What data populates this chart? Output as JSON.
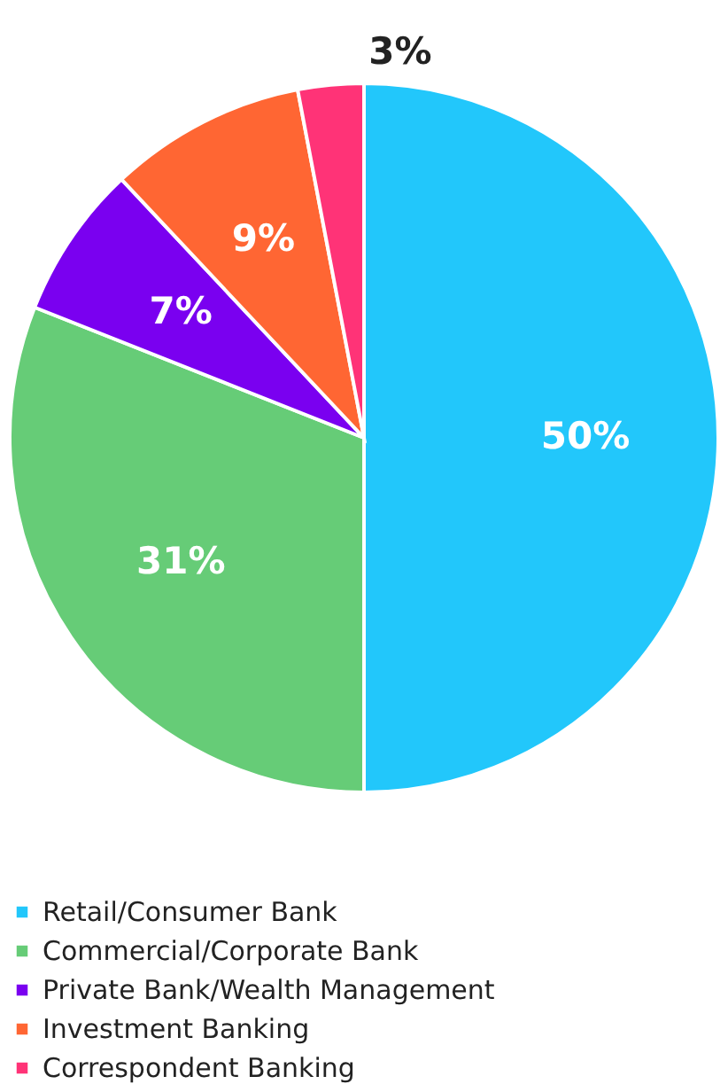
{
  "chart_data": {
    "type": "pie",
    "categories": [
      "Retail/Consumer Bank",
      "Commercial/Corporate Bank",
      "Private Bank/Wealth Management",
      "Investment Banking",
      "Correspondent Banking"
    ],
    "values": [
      50,
      31,
      7,
      9,
      3
    ],
    "colors": [
      "#22c7fb",
      "#66cc77",
      "#7a00f0",
      "#ff6633",
      "#ff3377"
    ],
    "value_labels": [
      "50%",
      "31%",
      "7%",
      "9%",
      "3%"
    ],
    "legend": "bottom"
  }
}
